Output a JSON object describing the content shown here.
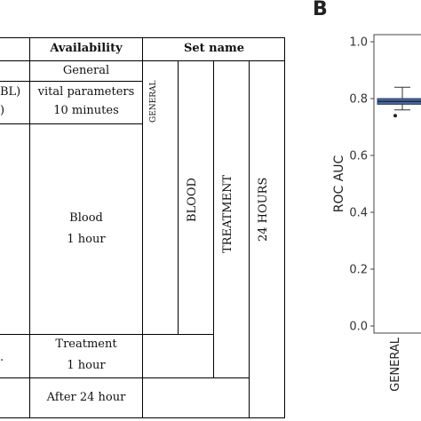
{
  "table": {
    "headers": {
      "availability": "Availability",
      "set_name": "Set name"
    },
    "left_fragments": [
      "BL)",
      ")",
      "."
    ],
    "rows": [
      {
        "availability": "General"
      },
      {
        "availability_line1": "vital parameters",
        "availability_line2": "10 minutes"
      },
      {
        "availability_line1": "Blood",
        "availability_line2": "1 hour"
      },
      {
        "availability_line1": "Treatment",
        "availability_line2": "1 hour"
      },
      {
        "availability": "After 24 hour"
      }
    ],
    "set_labels": [
      "GENERAL",
      "BLOOD",
      "TREATMENT",
      "24 HOURS"
    ]
  },
  "panel_b": {
    "letter": "B"
  },
  "chart_data": {
    "type": "box",
    "ylabel": "ROC AUC",
    "ylim": [
      0.0,
      1.0
    ],
    "yticks": [
      0.0,
      0.2,
      0.4,
      0.6,
      0.8,
      1.0
    ],
    "ytick_labels": [
      "0.0",
      "0.2",
      "0.4",
      "0.6",
      "0.8",
      "1.0"
    ],
    "categories": [
      "GENERAL"
    ],
    "boxes": [
      {
        "category": "GENERAL",
        "whisker_low": 0.76,
        "q1": 0.78,
        "median": 0.79,
        "q3": 0.8,
        "whisker_high": 0.84,
        "outliers": [
          0.74
        ]
      }
    ],
    "box_color": "#4a6a9c"
  }
}
